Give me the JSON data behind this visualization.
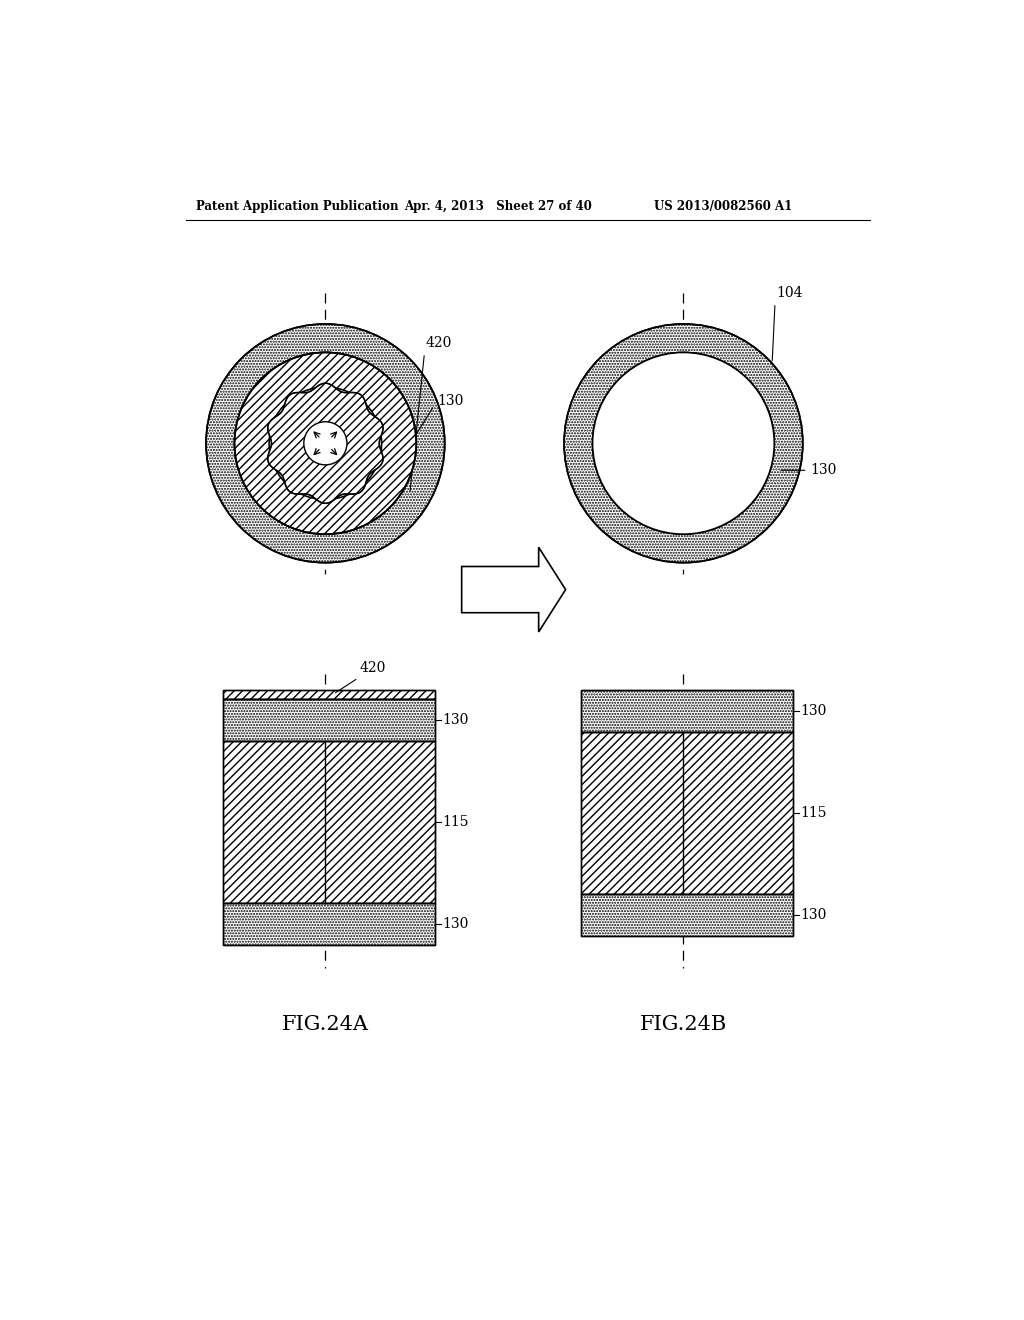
{
  "bg_color": "#ffffff",
  "header_left": "Patent Application Publication",
  "header_mid": "Apr. 4, 2013   Sheet 27 of 40",
  "header_right": "US 2013/0082560 A1",
  "fig_label_a": "FIG.24A",
  "fig_label_b": "FIG.24B"
}
